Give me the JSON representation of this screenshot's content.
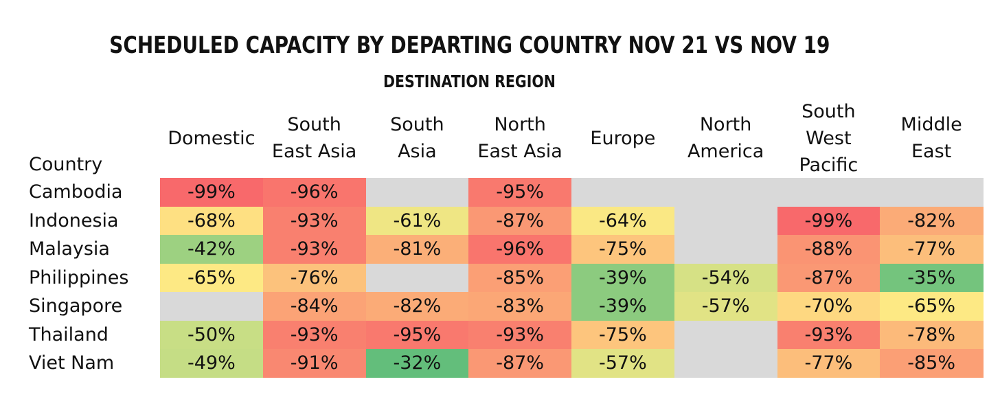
{
  "chart_data": {
    "type": "heatmap",
    "title": "SCHEDULED CAPACITY BY DEPARTING COUNTRY NOV 21 VS NOV 19",
    "subtitle": "DESTINATION REGION",
    "row_header": "Country",
    "columns": [
      [
        "Domestic"
      ],
      [
        "South",
        "East Asia"
      ],
      [
        "South",
        "Asia"
      ],
      [
        "North",
        "East Asia"
      ],
      [
        "Europe"
      ],
      [
        "North",
        "America"
      ],
      [
        "South",
        "West",
        "Pacific"
      ],
      [
        "Middle",
        "East"
      ]
    ],
    "rows": [
      "Cambodia",
      "Indonesia",
      "Malaysia",
      "Philippines",
      "Singapore",
      "Thailand",
      "Viet Nam"
    ],
    "values": [
      [
        -99,
        -96,
        null,
        -95,
        null,
        null,
        null,
        null
      ],
      [
        -68,
        -93,
        -61,
        -87,
        -64,
        null,
        -99,
        -82
      ],
      [
        -42,
        -93,
        -81,
        -96,
        -75,
        null,
        -88,
        -77
      ],
      [
        -65,
        -76,
        null,
        -85,
        -39,
        -54,
        -87,
        -35
      ],
      [
        null,
        -84,
        -82,
        -83,
        -39,
        -57,
        -70,
        -65
      ],
      [
        -50,
        -93,
        -95,
        -93,
        -75,
        null,
        -93,
        -78
      ],
      [
        -49,
        -91,
        -32,
        -87,
        -57,
        null,
        -77,
        -85
      ]
    ],
    "value_suffix": "%",
    "missing_color": "#d9d9d9",
    "color_scale": {
      "low_value": -99,
      "high_value": -32,
      "colors": [
        "#f8696b",
        "#fbaa77",
        "#ffe984",
        "#c4dd85",
        "#63be7b"
      ]
    }
  }
}
